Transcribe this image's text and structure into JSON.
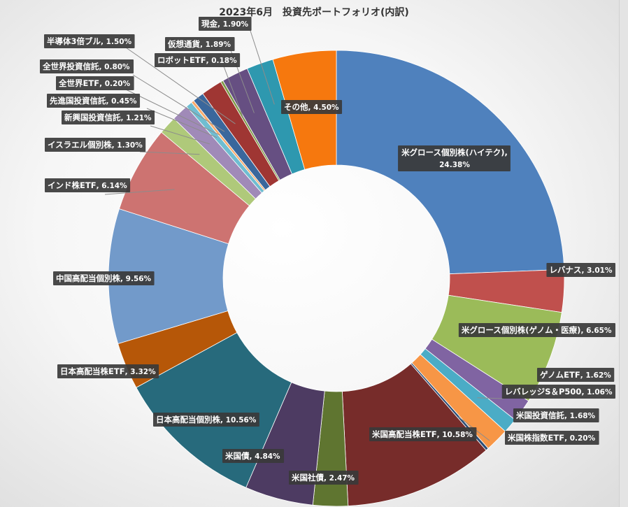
{
  "chart_data": {
    "type": "pie",
    "title": "2023年6月　投資先ポートフォリオ(内訳)",
    "slices": [
      {
        "label": "米グロース個別株(ハイテク)",
        "value": 24.38,
        "value_text": "24.38%",
        "color": "#4F81BD"
      },
      {
        "label": "レバナス",
        "value": 3.01,
        "value_text": "3.01%",
        "color": "#C0504D"
      },
      {
        "label": "米グロース個別株(ゲノム・医療)",
        "value": 6.65,
        "value_text": "6.65%",
        "color": "#9BBB59"
      },
      {
        "label": "ゲノムETF",
        "value": 1.62,
        "value_text": "1.62%",
        "color": "#8064A2"
      },
      {
        "label": "レバレッジS＆P500",
        "value": 1.06,
        "value_text": "1.06%",
        "color": "#4BACC6"
      },
      {
        "label": "米国投資信託",
        "value": 1.68,
        "value_text": "1.68%",
        "color": "#F79646"
      },
      {
        "label": "米国株指数ETF",
        "value": 0.2,
        "value_text": "0.20%",
        "color": "#2C4D75"
      },
      {
        "label": "米国高配当株ETF",
        "value": 10.58,
        "value_text": "10.58%",
        "color": "#772C2A"
      },
      {
        "label": "米国社債",
        "value": 2.47,
        "value_text": "2.47%",
        "color": "#5F7530"
      },
      {
        "label": "米国債",
        "value": 4.84,
        "value_text": "4.84%",
        "color": "#4D3B62"
      },
      {
        "label": "日本高配当個別株",
        "value": 10.56,
        "value_text": "10.56%",
        "color": "#276A7C"
      },
      {
        "label": "日本高配当株ETF",
        "value": 3.32,
        "value_text": "3.32%",
        "color": "#B65708"
      },
      {
        "label": "中国高配当個別株",
        "value": 9.56,
        "value_text": "9.56%",
        "color": "#729ACA"
      },
      {
        "label": "インド株ETF",
        "value": 6.14,
        "value_text": "6.14%",
        "color": "#CD7371"
      },
      {
        "label": "イスラエル個別株",
        "value": 1.3,
        "value_text": "1.30%",
        "color": "#AFC97A"
      },
      {
        "label": "新興国投資信託",
        "value": 1.21,
        "value_text": "1.21%",
        "color": "#A08AB8"
      },
      {
        "label": "先進国投資信託",
        "value": 0.45,
        "value_text": "0.45%",
        "color": "#6FBDD1"
      },
      {
        "label": "全世界ETF",
        "value": 0.2,
        "value_text": "0.20%",
        "color": "#F9AB6B"
      },
      {
        "label": "全世界投資信託",
        "value": 0.8,
        "value_text": "0.80%",
        "color": "#3A679C"
      },
      {
        "label": "半導体3倍ブル",
        "value": 1.5,
        "value_text": "1.50%",
        "color": "#9F3633"
      },
      {
        "label": "ロボットETF",
        "value": 0.18,
        "value_text": "0.18%",
        "color": "#7F9A48"
      },
      {
        "label": "仮想通貨",
        "value": 1.89,
        "value_text": "1.89%",
        "color": "#664F82"
      },
      {
        "label": "現金",
        "value": 1.9,
        "value_text": "1.90%",
        "color": "#2E98AF"
      },
      {
        "label": "その他",
        "value": 4.5,
        "value_text": "4.50%",
        "color": "#F6780E"
      }
    ],
    "legend": "none",
    "inner_hole": true
  }
}
